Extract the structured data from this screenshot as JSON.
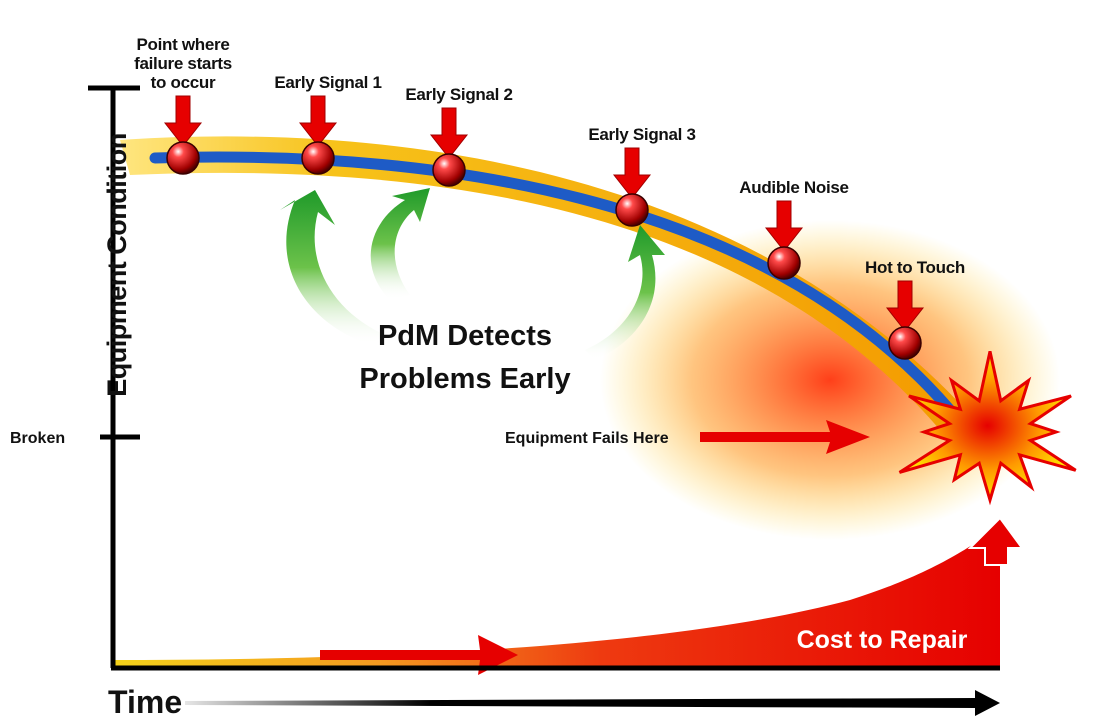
{
  "signals": [
    {
      "label": [
        "Point where",
        "failure starts",
        "to occur"
      ]
    },
    {
      "label": [
        "Early Signal 1"
      ]
    },
    {
      "label": [
        "Early Signal 2"
      ]
    },
    {
      "label": [
        "Early Signal 3"
      ]
    },
    {
      "label": [
        "Audible Noise"
      ]
    },
    {
      "label": [
        "Hot to Touch"
      ]
    }
  ],
  "y_axis": {
    "label": "Equipment Condition",
    "broken": "Broken"
  },
  "x_axis": {
    "label": "Time"
  },
  "callout": {
    "lines": [
      "PdM Detects",
      "Problems Early"
    ]
  },
  "failure": {
    "label": "Equipment Fails Here"
  },
  "cost": {
    "label": "Cost to Repair"
  }
}
